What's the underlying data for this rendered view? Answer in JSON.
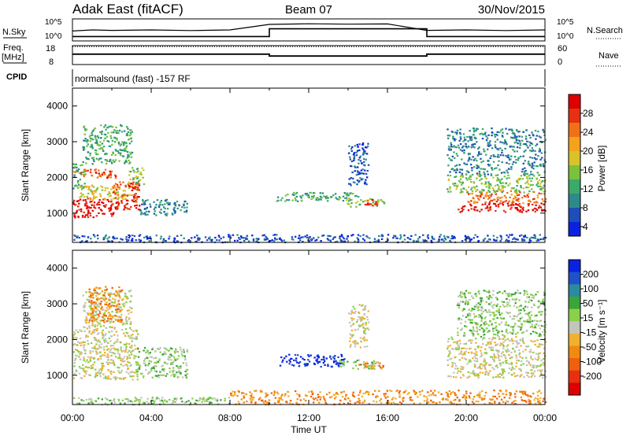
{
  "header": {
    "station": "Adak East (fitACF)",
    "beam": "Beam 07",
    "date": "30/Nov/2015"
  },
  "top_panels": {
    "nsky_label": "N.Sky",
    "nsky_ticks": [
      "10^5",
      "10^0"
    ],
    "nsearch_label": "N.Search",
    "nsearch_ticks": [
      "10^5",
      "10^0"
    ],
    "freq_label_1": "Freq.",
    "freq_label_2": "[MHz]",
    "freq_ticks": [
      "18",
      "8"
    ],
    "nave_label": "Nave",
    "nave_ticks": [
      "60",
      "0"
    ],
    "cpid_label": "CPID",
    "cpid_text": "normalsound (fast) -157 RF"
  },
  "axes": {
    "ylabel": "Slant Range [km]",
    "yticks": [
      "4000",
      "3000",
      "2000",
      "1000"
    ],
    "xlabel": "Time UT",
    "xticks": [
      "00:00",
      "04:00",
      "08:00",
      "12:00",
      "16:00",
      "20:00",
      "00:00"
    ]
  },
  "colors": {
    "power": [
      "#0a22e0",
      "#1c4fb8",
      "#2e8a8a",
      "#3aaa6a",
      "#7ac23c",
      "#d8c42a",
      "#f5a21c",
      "#f07018",
      "#e83012",
      "#dd0000"
    ],
    "velocity": [
      "#0a22e0",
      "#1f52c8",
      "#2c8aa0",
      "#3aa63a",
      "#8ad04a",
      "#c4c4bc",
      "#f0b030",
      "#f08a10",
      "#ee6010",
      "#e83010",
      "#dd0000"
    ]
  },
  "power_bar": {
    "label": "Power [dB]",
    "ticks": [
      "28",
      "24",
      "20",
      "16",
      "12",
      "8",
      "4"
    ]
  },
  "velocity_bar": {
    "label": "Velocity [m s⁻¹]",
    "ticks": [
      "200",
      "100",
      "50",
      "15",
      "-15",
      "-50",
      "-100",
      "-200"
    ]
  },
  "chart_data": [
    {
      "type": "line",
      "title": "N.Sky / N.Search",
      "x_range_hours": [
        0,
        24
      ],
      "series": [
        {
          "name": "N.Sky",
          "points": [
            [
              0,
              0.45
            ],
            [
              1,
              0.5
            ],
            [
              2,
              0.48
            ],
            [
              4,
              0.5
            ],
            [
              6,
              0.47
            ],
            [
              8,
              0.5
            ],
            [
              10,
              0.75
            ],
            [
              12,
              0.78
            ],
            [
              14,
              0.76
            ],
            [
              16,
              0.77
            ],
            [
              18,
              0.48
            ],
            [
              20,
              0.5
            ],
            [
              22,
              0.47
            ],
            [
              24,
              0.5
            ]
          ]
        },
        {
          "name": "N.Search",
          "points": [
            [
              0,
              0.2
            ],
            [
              10,
              0.2
            ],
            [
              10,
              0.55
            ],
            [
              18,
              0.55
            ],
            [
              18,
              0.2
            ],
            [
              24,
              0.2
            ]
          ]
        }
      ]
    },
    {
      "type": "line",
      "title": "Freq. / Nave",
      "x_range_hours": [
        0,
        24
      ],
      "series": [
        {
          "name": "Freq.",
          "points": [
            [
              0,
              11
            ],
            [
              10,
              11
            ],
            [
              10,
              9
            ],
            [
              18,
              9
            ],
            [
              18,
              11
            ],
            [
              24,
              11
            ]
          ]
        },
        {
          "name": "Nave",
          "points": [
            [
              0,
              19
            ],
            [
              24,
              19
            ]
          ]
        }
      ]
    },
    {
      "type": "heatmap",
      "title": "Power",
      "x_range_hours": [
        0,
        24
      ],
      "y_range_km": [
        180,
        4500
      ],
      "colorbar_range": [
        0,
        30
      ],
      "blobs": [
        {
          "t0": 0.0,
          "t1": 2.2,
          "r0": 900,
          "r1": 1450,
          "level": 9
        },
        {
          "t0": 0.0,
          "t1": 2.0,
          "r0": 2050,
          "r1": 2250,
          "level": 7
        },
        {
          "t0": 1.0,
          "t1": 2.2,
          "r0": 2000,
          "r1": 2200,
          "level": 8
        },
        {
          "t0": 0.3,
          "t1": 3.3,
          "r0": 1400,
          "r1": 1800,
          "level": 5
        },
        {
          "t0": 2.0,
          "t1": 3.4,
          "r0": 1100,
          "r1": 1900,
          "level": 8
        },
        {
          "t0": 2.8,
          "t1": 3.6,
          "r0": 1800,
          "r1": 2300,
          "level": 4
        },
        {
          "t0": 0.0,
          "t1": 0.6,
          "r0": 1700,
          "r1": 2400,
          "level": 3
        },
        {
          "t0": 3.4,
          "t1": 5.8,
          "r0": 950,
          "r1": 1400,
          "level": 2
        },
        {
          "t0": 0.5,
          "t1": 3.0,
          "r0": 2400,
          "r1": 3500,
          "level": 3
        },
        {
          "t0": 10.3,
          "t1": 14.5,
          "r0": 1350,
          "r1": 1600,
          "level": 3
        },
        {
          "t0": 13.8,
          "t1": 15.8,
          "r0": 1200,
          "r1": 1450,
          "level": 4
        },
        {
          "t0": 14.8,
          "t1": 15.5,
          "r0": 1200,
          "r1": 1400,
          "level": 8
        },
        {
          "t0": 14.0,
          "t1": 15.0,
          "r0": 1800,
          "r1": 3000,
          "level": 1
        },
        {
          "t0": 19.5,
          "t1": 24.0,
          "r0": 1050,
          "r1": 1300,
          "level": 9
        },
        {
          "t0": 20.0,
          "t1": 24.0,
          "r0": 1300,
          "r1": 1650,
          "level": 7
        },
        {
          "t0": 19.0,
          "t1": 24.0,
          "r0": 1600,
          "r1": 2100,
          "level": 4
        },
        {
          "t0": 19.0,
          "t1": 24.0,
          "r0": 2100,
          "r1": 3400,
          "level": 2
        },
        {
          "t0": 0.0,
          "t1": 24.0,
          "r0": 200,
          "r1": 420,
          "level": 1
        }
      ]
    },
    {
      "type": "heatmap",
      "title": "Velocity",
      "x_range_hours": [
        0,
        24
      ],
      "y_range_km": [
        180,
        4500
      ],
      "colorbar_range": [
        -200,
        200
      ],
      "blobs": [
        {
          "t0": 0.0,
          "t1": 3.3,
          "r0": 900,
          "r1": 2300,
          "level": 5
        },
        {
          "t0": 0.5,
          "t1": 3.0,
          "r0": 2300,
          "r1": 3400,
          "level": 5
        },
        {
          "t0": 0.8,
          "t1": 2.5,
          "r0": 2500,
          "r1": 3500,
          "level": 7
        },
        {
          "t0": 3.2,
          "t1": 5.8,
          "r0": 950,
          "r1": 1800,
          "level": 4
        },
        {
          "t0": 10.5,
          "t1": 13.8,
          "r0": 1250,
          "r1": 1600,
          "level": 0
        },
        {
          "t0": 13.5,
          "t1": 15.5,
          "r0": 1200,
          "r1": 1450,
          "level": 4
        },
        {
          "t0": 14.5,
          "t1": 15.8,
          "r0": 1200,
          "r1": 1400,
          "level": 7
        },
        {
          "t0": 14.0,
          "t1": 15.0,
          "r0": 1800,
          "r1": 3000,
          "level": 5
        },
        {
          "t0": 19.0,
          "t1": 24.0,
          "r0": 950,
          "r1": 2100,
          "level": 5
        },
        {
          "t0": 19.5,
          "t1": 24.0,
          "r0": 2100,
          "r1": 3400,
          "level": 4
        },
        {
          "t0": 8.0,
          "t1": 24.0,
          "r0": 200,
          "r1": 600,
          "level": 7
        },
        {
          "t0": 0.0,
          "t1": 8.0,
          "r0": 200,
          "r1": 400,
          "level": 4
        }
      ]
    }
  ]
}
